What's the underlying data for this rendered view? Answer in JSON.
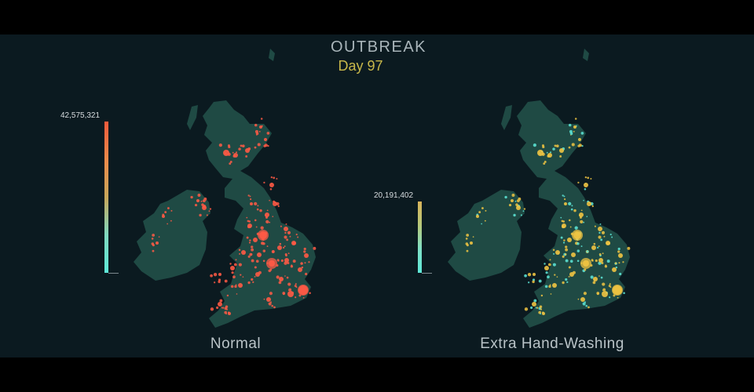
{
  "header": {
    "title": "OUTBREAK",
    "day_label": "Day 97"
  },
  "colors": {
    "background": "#0b1a20",
    "land": "#1f4a44",
    "normal_hot": "#ff5a45",
    "handwash_hot": "#f0c442",
    "handwash_cool": "#5ee8d8",
    "scale_low": "#5ee8d8"
  },
  "panels": [
    {
      "id": "normal",
      "label": "Normal",
      "scale_max": "42,575,321",
      "scale_colors": [
        "#ef5a3c",
        "#ee8a4a",
        "#c8a65a",
        "#7fd9c0",
        "#5ee8d8"
      ]
    },
    {
      "id": "extra-hand-washing",
      "label": "Extra Hand-Washing",
      "scale_max": "20,191,402",
      "scale_colors": [
        "#d9b45a",
        "#b7c87a",
        "#7fe0c6",
        "#5ee8d8"
      ]
    }
  ]
}
